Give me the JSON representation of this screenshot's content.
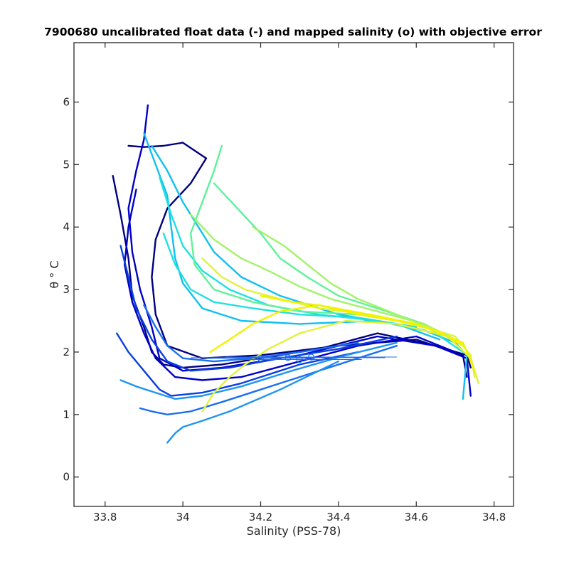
{
  "chart_data": {
    "type": "line",
    "title": "7900680 uncalibrated float data (-) and mapped salinity (o) with objective error",
    "xlabel": "Salinity (PSS-78)",
    "ylabel": "θ ° C",
    "xlim": [
      33.72,
      34.85
    ],
    "ylim": [
      -0.47,
      6.95
    ],
    "xticks": [
      33.8,
      34,
      34.2,
      34.4,
      34.6,
      34.8
    ],
    "xtick_labels": [
      "33.8",
      "34",
      "34.2",
      "34.4",
      "34.6",
      "34.8"
    ],
    "yticks": [
      0,
      1,
      2,
      3,
      4,
      5,
      6
    ],
    "ytick_labels": [
      "0",
      "1",
      "2",
      "3",
      "4",
      "5",
      "6"
    ],
    "grid": false,
    "legend": "none",
    "colormap": "parula/jet (dark blue early profiles → yellow late profiles)",
    "colors": [
      "#00007f",
      "#0000c8",
      "#0a3fe0",
      "#1a6ff0",
      "#1f95f0",
      "#10c0f0",
      "#22e0e0",
      "#5ef29a",
      "#a2f26a",
      "#e0f23a",
      "#f2f200"
    ],
    "series": [
      {
        "color_index": 0,
        "points": [
          [
            33.82,
            4.82
          ],
          [
            33.84,
            4.2
          ],
          [
            33.86,
            3.5
          ],
          [
            33.87,
            2.9
          ],
          [
            33.9,
            2.4
          ],
          [
            33.92,
            2.0
          ],
          [
            33.95,
            1.8
          ],
          [
            34.0,
            1.75
          ],
          [
            34.1,
            1.8
          ],
          [
            34.2,
            1.9
          ],
          [
            34.35,
            2.05
          ],
          [
            34.5,
            2.3
          ],
          [
            34.65,
            2.1
          ],
          [
            34.73,
            1.95
          ],
          [
            34.74,
            1.75
          ]
        ]
      },
      {
        "color_index": 0,
        "points": [
          [
            33.86,
            5.3
          ],
          [
            33.9,
            5.28
          ],
          [
            33.95,
            5.3
          ],
          [
            34.0,
            5.35
          ],
          [
            34.06,
            5.1
          ],
          [
            34.02,
            4.7
          ],
          [
            33.96,
            4.3
          ],
          [
            33.93,
            3.8
          ],
          [
            33.92,
            3.2
          ],
          [
            33.93,
            2.6
          ],
          [
            33.96,
            2.1
          ],
          [
            34.05,
            1.9
          ],
          [
            34.2,
            1.95
          ],
          [
            34.4,
            2.1
          ],
          [
            34.6,
            2.2
          ],
          [
            34.72,
            1.95
          ],
          [
            34.73,
            1.6
          ]
        ]
      },
      {
        "color_index": 1,
        "points": [
          [
            33.91,
            5.95
          ],
          [
            33.9,
            5.4
          ],
          [
            33.88,
            4.9
          ],
          [
            33.86,
            4.3
          ],
          [
            33.87,
            3.6
          ],
          [
            33.89,
            3.0
          ],
          [
            33.92,
            2.4
          ],
          [
            33.94,
            1.9
          ],
          [
            34.0,
            1.7
          ],
          [
            34.1,
            1.75
          ],
          [
            34.3,
            1.95
          ],
          [
            34.5,
            2.25
          ],
          [
            34.65,
            2.1
          ],
          [
            34.73,
            1.9
          ],
          [
            34.74,
            1.3
          ]
        ]
      },
      {
        "color_index": 1,
        "points": [
          [
            33.88,
            4.6
          ],
          [
            33.86,
            4.0
          ],
          [
            33.85,
            3.4
          ],
          [
            33.87,
            2.8
          ],
          [
            33.9,
            2.3
          ],
          [
            33.93,
            1.9
          ],
          [
            33.98,
            1.6
          ],
          [
            34.05,
            1.55
          ],
          [
            34.15,
            1.6
          ],
          [
            34.3,
            1.85
          ],
          [
            34.45,
            2.1
          ],
          [
            34.6,
            2.25
          ],
          [
            34.7,
            2.0
          ]
        ]
      },
      {
        "color_index": 2,
        "points": [
          [
            33.83,
            2.3
          ],
          [
            33.86,
            2.0
          ],
          [
            33.9,
            1.7
          ],
          [
            33.94,
            1.4
          ],
          [
            33.97,
            1.3
          ],
          [
            34.05,
            1.35
          ],
          [
            34.15,
            1.5
          ],
          [
            34.3,
            1.8
          ],
          [
            34.45,
            2.0
          ]
        ]
      },
      {
        "color_index": 2,
        "points": [
          [
            33.84,
            3.7
          ],
          [
            33.86,
            3.2
          ],
          [
            33.88,
            2.7
          ],
          [
            33.92,
            2.2
          ],
          [
            33.96,
            1.85
          ],
          [
            34.02,
            1.7
          ],
          [
            34.12,
            1.75
          ],
          [
            34.25,
            1.9
          ],
          [
            34.4,
            2.05
          ],
          [
            34.55,
            2.25
          ]
        ]
      },
      {
        "color_index": 3,
        "points": [
          [
            33.89,
            1.1
          ],
          [
            33.92,
            1.05
          ],
          [
            33.96,
            1.0
          ],
          [
            34.02,
            1.05
          ],
          [
            34.1,
            1.2
          ],
          [
            34.2,
            1.4
          ],
          [
            34.3,
            1.6
          ],
          [
            34.45,
            1.9
          ],
          [
            34.55,
            2.1
          ]
        ]
      },
      {
        "color_index": 3,
        "points": [
          [
            33.9,
            2.75
          ],
          [
            33.93,
            2.4
          ],
          [
            33.96,
            2.1
          ],
          [
            34.0,
            1.9
          ],
          [
            34.08,
            1.85
          ],
          [
            34.18,
            1.9
          ],
          [
            34.3,
            2.0
          ],
          [
            34.45,
            2.15
          ]
        ]
      },
      {
        "color_index": 4,
        "points": [
          [
            33.84,
            1.55
          ],
          [
            33.88,
            1.45
          ],
          [
            33.93,
            1.35
          ],
          [
            33.98,
            1.25
          ],
          [
            34.05,
            1.3
          ],
          [
            34.15,
            1.45
          ],
          [
            34.28,
            1.7
          ],
          [
            34.42,
            1.95
          ],
          [
            34.55,
            2.15
          ]
        ]
      },
      {
        "color_index": 4,
        "points": [
          [
            33.96,
            0.55
          ],
          [
            33.98,
            0.7
          ],
          [
            34.0,
            0.8
          ],
          [
            34.05,
            0.9
          ],
          [
            34.12,
            1.05
          ],
          [
            34.25,
            1.4
          ],
          [
            34.4,
            1.85
          ]
        ]
      },
      {
        "color_index": 5,
        "points": [
          [
            33.9,
            5.5
          ],
          [
            33.93,
            5.0
          ],
          [
            33.96,
            4.5
          ],
          [
            33.97,
            4.0
          ],
          [
            33.98,
            3.5
          ],
          [
            34.0,
            3.1
          ],
          [
            34.05,
            2.7
          ],
          [
            34.15,
            2.5
          ],
          [
            34.3,
            2.45
          ],
          [
            34.5,
            2.5
          ],
          [
            34.62,
            2.35
          ],
          [
            34.7,
            2.15
          ],
          [
            34.73,
            1.95
          ],
          [
            34.72,
            1.25
          ]
        ]
      },
      {
        "color_index": 5,
        "points": [
          [
            33.92,
            5.3
          ],
          [
            33.96,
            4.9
          ],
          [
            34.0,
            4.4
          ],
          [
            34.04,
            4.0
          ],
          [
            34.08,
            3.6
          ],
          [
            34.15,
            3.2
          ],
          [
            34.25,
            2.9
          ],
          [
            34.4,
            2.6
          ],
          [
            34.55,
            2.45
          ],
          [
            34.66,
            2.2
          ]
        ]
      },
      {
        "color_index": 6,
        "points": [
          [
            33.94,
            4.8
          ],
          [
            33.97,
            4.2
          ],
          [
            34.0,
            3.7
          ],
          [
            34.05,
            3.3
          ],
          [
            34.12,
            3.0
          ],
          [
            34.22,
            2.75
          ],
          [
            34.35,
            2.6
          ],
          [
            34.5,
            2.5
          ],
          [
            34.65,
            2.3
          ],
          [
            34.72,
            2.0
          ]
        ]
      },
      {
        "color_index": 6,
        "points": [
          [
            33.95,
            3.9
          ],
          [
            33.98,
            3.4
          ],
          [
            34.02,
            3.0
          ],
          [
            34.08,
            2.8
          ],
          [
            34.18,
            2.7
          ],
          [
            34.3,
            2.6
          ],
          [
            34.45,
            2.55
          ],
          [
            34.6,
            2.4
          ]
        ]
      },
      {
        "color_index": 7,
        "points": [
          [
            34.1,
            5.3
          ],
          [
            34.08,
            4.9
          ],
          [
            34.05,
            4.4
          ],
          [
            34.02,
            3.9
          ],
          [
            34.03,
            3.4
          ],
          [
            34.08,
            3.0
          ],
          [
            34.18,
            2.8
          ],
          [
            34.3,
            2.65
          ],
          [
            34.45,
            2.6
          ],
          [
            34.6,
            2.45
          ],
          [
            34.7,
            2.2
          ]
        ]
      },
      {
        "color_index": 7,
        "points": [
          [
            34.08,
            4.7
          ],
          [
            34.14,
            4.3
          ],
          [
            34.2,
            3.9
          ],
          [
            34.25,
            3.5
          ],
          [
            34.32,
            3.2
          ],
          [
            34.4,
            2.9
          ],
          [
            34.5,
            2.7
          ],
          [
            34.62,
            2.45
          ]
        ]
      },
      {
        "color_index": 8,
        "points": [
          [
            34.02,
            4.2
          ],
          [
            34.08,
            3.8
          ],
          [
            34.15,
            3.5
          ],
          [
            34.22,
            3.3
          ],
          [
            34.3,
            3.05
          ],
          [
            34.38,
            2.85
          ],
          [
            34.5,
            2.65
          ],
          [
            34.62,
            2.45
          ],
          [
            34.7,
            2.2
          ]
        ]
      },
      {
        "color_index": 8,
        "points": [
          [
            34.18,
            4.0
          ],
          [
            34.26,
            3.7
          ],
          [
            34.32,
            3.4
          ],
          [
            34.38,
            3.1
          ],
          [
            34.45,
            2.85
          ],
          [
            34.55,
            2.6
          ],
          [
            34.65,
            2.35
          ]
        ]
      },
      {
        "color_index": 9,
        "points": [
          [
            34.05,
            3.5
          ],
          [
            34.1,
            3.2
          ],
          [
            34.16,
            3.0
          ],
          [
            34.25,
            2.85
          ],
          [
            34.35,
            2.7
          ],
          [
            34.48,
            2.6
          ],
          [
            34.6,
            2.45
          ],
          [
            34.7,
            2.25
          ],
          [
            34.74,
            1.95
          ],
          [
            34.75,
            1.6
          ]
        ]
      },
      {
        "color_index": 9,
        "points": [
          [
            34.05,
            1.05
          ],
          [
            34.08,
            1.35
          ],
          [
            34.12,
            1.6
          ],
          [
            34.16,
            1.8
          ],
          [
            34.22,
            2.05
          ],
          [
            34.3,
            2.3
          ],
          [
            34.42,
            2.5
          ],
          [
            34.55,
            2.45
          ],
          [
            34.68,
            2.25
          ],
          [
            34.74,
            1.9
          ],
          [
            34.76,
            1.5
          ]
        ]
      },
      {
        "color_index": 10,
        "points": [
          [
            34.07,
            2.0
          ],
          [
            34.12,
            2.2
          ],
          [
            34.18,
            2.45
          ],
          [
            34.25,
            2.65
          ],
          [
            34.35,
            2.75
          ],
          [
            34.48,
            2.6
          ],
          [
            34.6,
            2.45
          ],
          [
            34.72,
            2.15
          ],
          [
            34.75,
            1.7
          ]
        ]
      },
      {
        "color_index": 10,
        "points": [
          [
            34.2,
            2.9
          ],
          [
            34.28,
            2.8
          ],
          [
            34.35,
            2.75
          ],
          [
            34.45,
            2.6
          ],
          [
            34.55,
            2.5
          ],
          [
            34.65,
            2.35
          ],
          [
            34.72,
            2.1
          ]
        ]
      }
    ],
    "mapped_salinity": {
      "color_index": 3,
      "points": [
        {
          "x": 34.3,
          "y": 1.88,
          "err": 0.16
        },
        {
          "x": 34.33,
          "y": 1.92,
          "err": 0.22
        },
        {
          "x": 34.2,
          "y": 1.9,
          "err": 0.14
        },
        {
          "x": 34.27,
          "y": 1.91,
          "err": 0.25
        }
      ]
    }
  }
}
